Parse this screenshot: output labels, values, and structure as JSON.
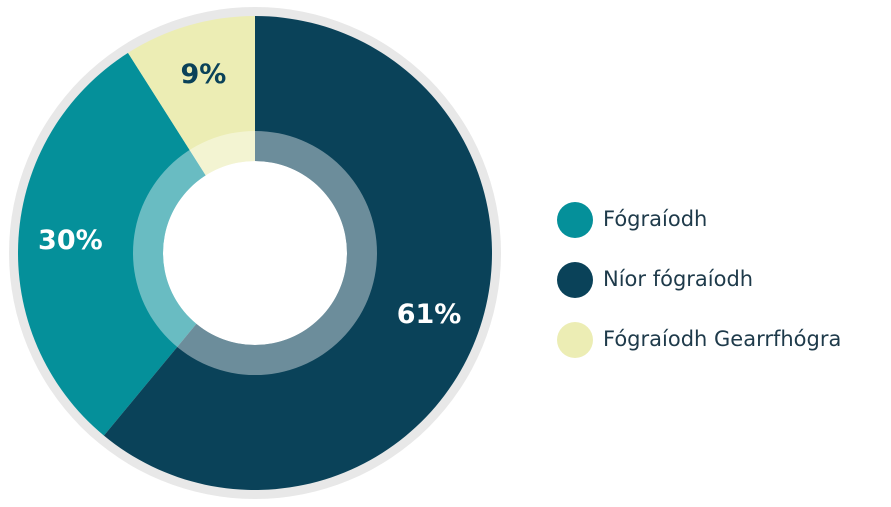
{
  "chart_data": {
    "type": "pie",
    "categories": [
      "Fógraíodh",
      "Níor fógraíodh",
      "Fógraíodh Gearrfhógra"
    ],
    "values": [
      30,
      61,
      9
    ],
    "value_labels": [
      "30%",
      "61%",
      "9%"
    ],
    "colors": [
      "#05909a",
      "#0a4259",
      "#ecedb4"
    ],
    "label_colors": [
      "#ffffff",
      "#ffffff",
      "#0a4259"
    ],
    "legend": "right"
  }
}
